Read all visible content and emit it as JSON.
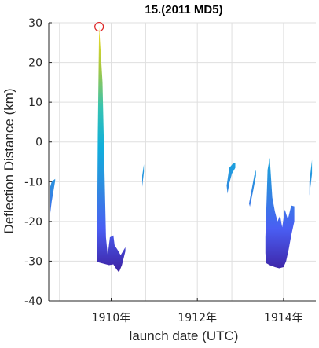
{
  "chart_data": {
    "type": "area",
    "title": "15.(2011 MD5)",
    "xlabel": "launch date (UTC)",
    "ylabel": "Deflection Distance (km)",
    "xlim": [
      1908.55,
      1914.75
    ],
    "ylim": [
      -40,
      30
    ],
    "xticks": [
      1910,
      1912,
      1914
    ],
    "xtick_labels": [
      "1910年",
      "1912年",
      "1914年"
    ],
    "yticks": [
      -40,
      -30,
      -20,
      -10,
      0,
      10,
      20,
      30
    ],
    "ytick_labels": [
      "-40",
      "-30",
      "-20",
      "-10",
      "0",
      "10",
      "20",
      "30"
    ],
    "grid": true,
    "colormap": [
      "#3e26a8",
      "#4a5ef3",
      "#2f8ae0",
      "#10aedc",
      "#36c3b2",
      "#a9c83e",
      "#f4dd26"
    ],
    "marker": {
      "x": 1909.72,
      "y": 29,
      "color": "#dd2222",
      "shape": "open-circle"
    },
    "regions": [
      {
        "name": "region-1",
        "top": [
          [
            1908.58,
            -11.5
          ],
          [
            1908.62,
            -10.0
          ],
          [
            1908.7,
            -9.3
          ]
        ],
        "bottom": [
          [
            1908.7,
            -9.8
          ],
          [
            1908.62,
            -15.0
          ],
          [
            1908.58,
            -18.5
          ]
        ]
      },
      {
        "name": "region-2",
        "top": [
          [
            1909.67,
            -30.0
          ],
          [
            1909.69,
            2.0
          ],
          [
            1909.72,
            29.0
          ],
          [
            1909.8,
            15.0
          ],
          [
            1909.88,
            -24.0
          ],
          [
            1909.92,
            -28.5
          ],
          [
            1909.97,
            -24.0
          ],
          [
            1910.05,
            -23.5
          ],
          [
            1910.08,
            -26.0
          ],
          [
            1910.14,
            -27.0
          ],
          [
            1910.22,
            -28.5
          ],
          [
            1910.33,
            -26.5
          ]
        ],
        "bottom": [
          [
            1910.33,
            -27.5
          ],
          [
            1910.25,
            -31.0
          ],
          [
            1910.18,
            -32.8
          ],
          [
            1910.12,
            -32.0
          ],
          [
            1910.05,
            -30.8
          ],
          [
            1909.95,
            -31.0
          ],
          [
            1909.85,
            -30.7
          ],
          [
            1909.67,
            -30.2
          ]
        ]
      },
      {
        "name": "region-3",
        "top": [
          [
            1910.72,
            -8.5
          ],
          [
            1910.76,
            -5.6
          ]
        ],
        "bottom": [
          [
            1910.76,
            -7.5
          ],
          [
            1910.72,
            -11.3
          ]
        ]
      },
      {
        "name": "region-4",
        "top": [
          [
            1912.68,
            -11.0
          ],
          [
            1912.74,
            -6.5
          ],
          [
            1912.82,
            -5.5
          ],
          [
            1912.88,
            -5.2
          ]
        ],
        "bottom": [
          [
            1912.88,
            -6.5
          ],
          [
            1912.8,
            -8.0
          ],
          [
            1912.74,
            -10.5
          ],
          [
            1912.7,
            -13.0
          ]
        ]
      },
      {
        "name": "region-5",
        "top": [
          [
            1913.2,
            -15.5
          ],
          [
            1913.32,
            -8.5
          ],
          [
            1913.36,
            -7.0
          ]
        ],
        "bottom": [
          [
            1913.36,
            -8.5
          ],
          [
            1913.3,
            -12.0
          ],
          [
            1913.22,
            -16.3
          ]
        ]
      },
      {
        "name": "region-6",
        "top": [
          [
            1913.58,
            -24.0
          ],
          [
            1913.63,
            -7.0
          ],
          [
            1913.68,
            -4.0
          ],
          [
            1913.74,
            -14.0
          ],
          [
            1913.8,
            -17.5
          ],
          [
            1913.86,
            -20.0
          ],
          [
            1913.92,
            -18.5
          ],
          [
            1913.97,
            -21.5
          ],
          [
            1914.03,
            -17.0
          ],
          [
            1914.1,
            -19.5
          ],
          [
            1914.18,
            -16.0
          ],
          [
            1914.25,
            -16.2
          ]
        ],
        "bottom": [
          [
            1914.25,
            -20.0
          ],
          [
            1914.18,
            -23.5
          ],
          [
            1914.12,
            -27.0
          ],
          [
            1914.06,
            -30.0
          ],
          [
            1914.0,
            -31.5
          ],
          [
            1913.9,
            -31.8
          ],
          [
            1913.8,
            -31.5
          ],
          [
            1913.68,
            -31.0
          ],
          [
            1913.6,
            -30.5
          ],
          [
            1913.58,
            -28.0
          ]
        ]
      },
      {
        "name": "region-7",
        "top": [
          [
            1914.6,
            -10.0
          ],
          [
            1914.66,
            -4.5
          ]
        ],
        "bottom": [
          [
            1914.66,
            -8.0
          ],
          [
            1914.6,
            -13.5
          ]
        ]
      }
    ]
  }
}
